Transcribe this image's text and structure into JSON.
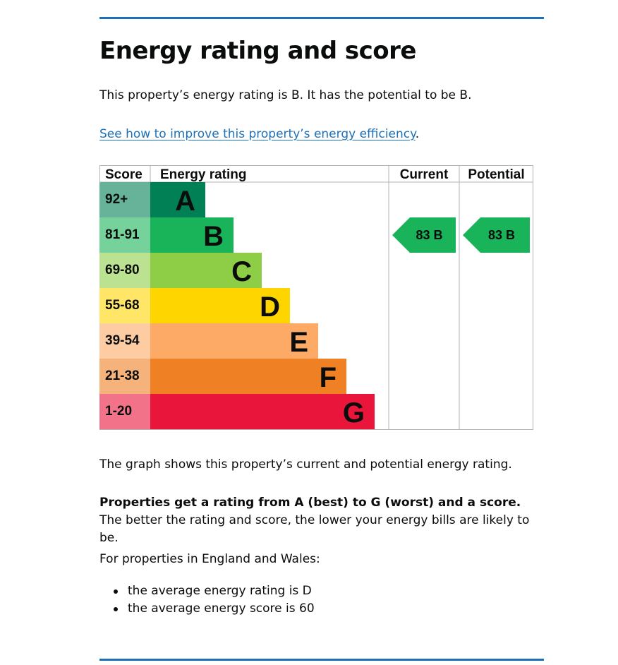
{
  "heading": "Energy rating and score",
  "intro": "This property’s energy rating is B. It has the potential to be B.",
  "improve_link": "See how to improve this property’s energy efficiency",
  "improve_link_suffix": ".",
  "chart_data": {
    "type": "bar",
    "columns": [
      "Score",
      "Energy rating",
      "Current",
      "Potential"
    ],
    "bands": [
      {
        "letter": "A",
        "range": "92+",
        "color": "#008054",
        "score_color": "#66b399"
      },
      {
        "letter": "B",
        "range": "81-91",
        "color": "#19b459",
        "score_color": "#75d29b"
      },
      {
        "letter": "C",
        "range": "69-80",
        "color": "#8dce46",
        "score_color": "#bbe290"
      },
      {
        "letter": "D",
        "range": "55-68",
        "color": "#ffd500",
        "score_color": "#ffe666"
      },
      {
        "letter": "E",
        "range": "39-54",
        "color": "#fcaa65",
        "score_color": "#fdcca3"
      },
      {
        "letter": "F",
        "range": "21-38",
        "color": "#ef8023",
        "score_color": "#f5b37b"
      },
      {
        "letter": "G",
        "range": "1-20",
        "color": "#e9153b",
        "score_color": "#f27389"
      }
    ],
    "current": {
      "score": 83,
      "band": "B",
      "label": "83 B"
    },
    "potential": {
      "score": 83,
      "band": "B",
      "label": "83 B"
    }
  },
  "graph_description": "The graph shows this property’s current and potential energy rating.",
  "ratings_bold": "Properties get a rating from A (best) to G (worst) and a score.",
  "ratings_rest": " The better the rating and score, the lower your energy bills are likely to be.",
  "region_intro": "For properties in England and Wales:",
  "averages": [
    "the average energy rating is D",
    "the average energy score is 60"
  ]
}
